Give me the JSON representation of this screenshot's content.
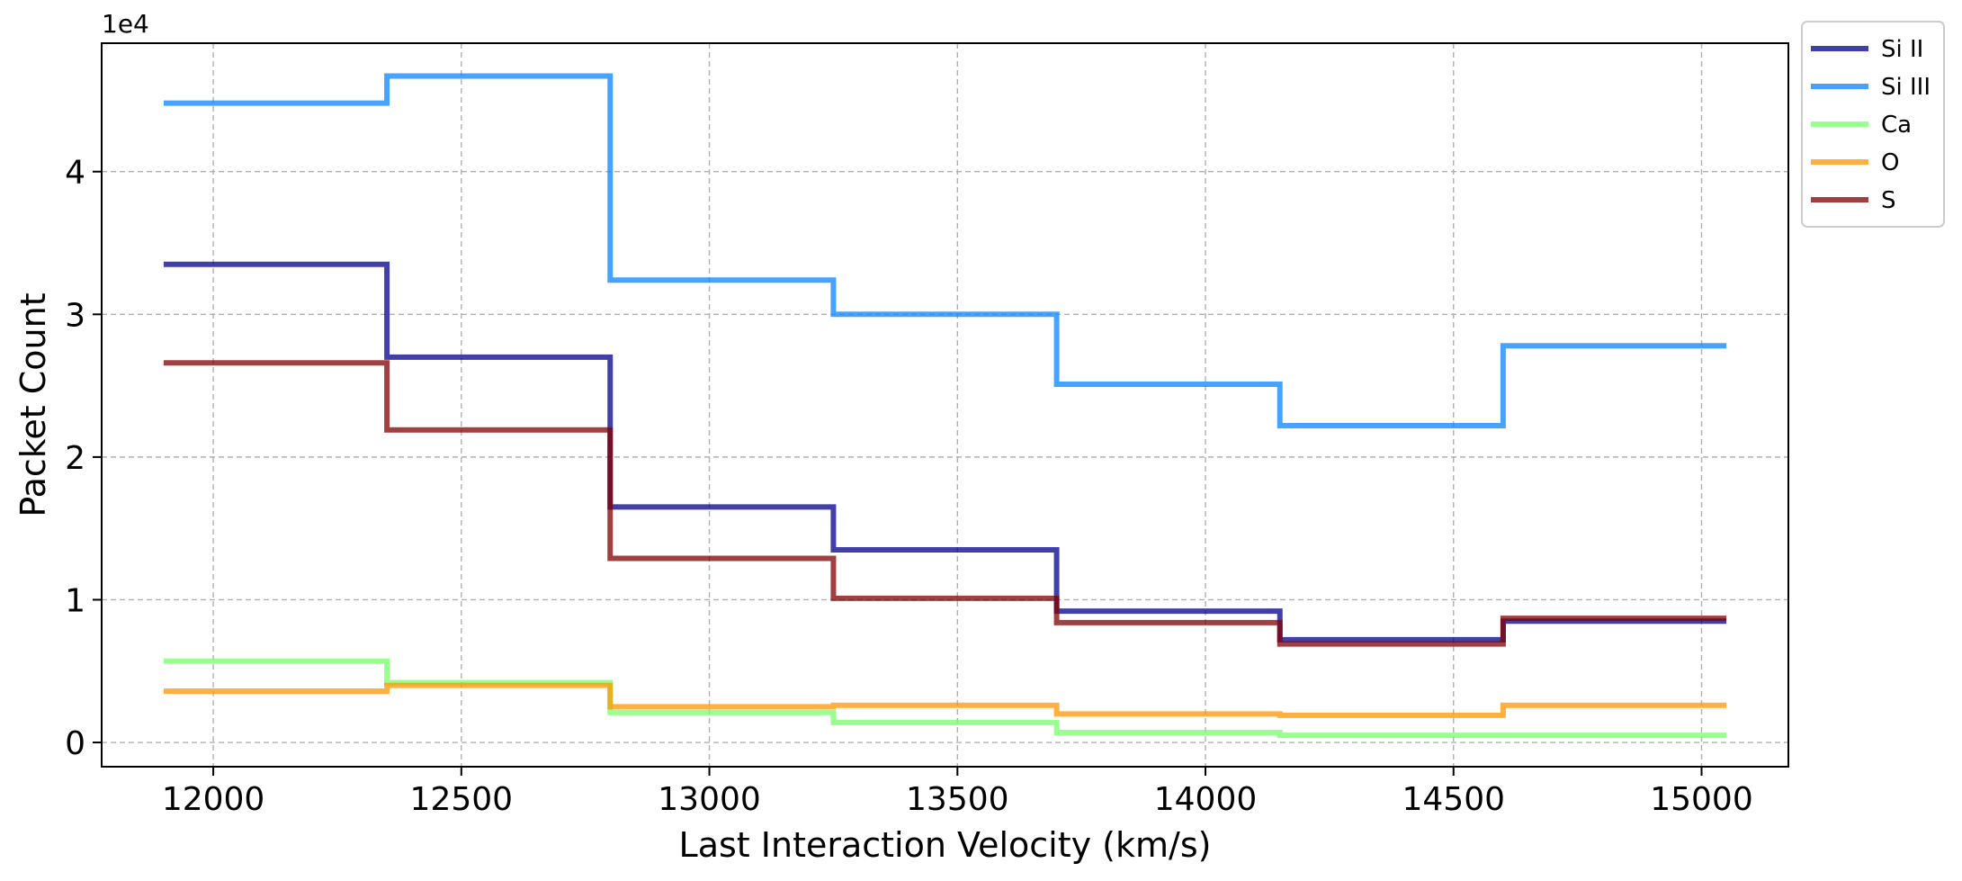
{
  "chart_data": {
    "type": "line",
    "drawstyle": "steps-post",
    "xlabel": "Last Interaction Velocity (km/s)",
    "ylabel": "Packet Count",
    "y_offset_text": "1e4",
    "x": [
      11900,
      12350,
      12800,
      13250,
      13700,
      14150,
      14600,
      15050
    ],
    "xlim": [
      11775,
      15175
    ],
    "ylim": [
      -1700,
      49000
    ],
    "xticks": [
      "12000",
      "12500",
      "13000",
      "13500",
      "14000",
      "14500",
      "15000"
    ],
    "yticks": [
      "0",
      "1",
      "2",
      "3",
      "4"
    ],
    "grid": true,
    "legend_position": "outside-top-right",
    "series": [
      {
        "name": "Si II",
        "color": "#00008b",
        "values": [
          33500,
          27000,
          16500,
          13500,
          9200,
          7200,
          8500,
          8500
        ]
      },
      {
        "name": "Si III",
        "color": "#0a84ff",
        "values": [
          44800,
          46700,
          32400,
          30000,
          25100,
          22200,
          27800,
          27800
        ]
      },
      {
        "name": "Ca",
        "color": "#77ff6b",
        "values": [
          5700,
          4200,
          2100,
          1400,
          700,
          500,
          500,
          500
        ]
      },
      {
        "name": "O",
        "color": "#ff9500",
        "values": [
          3600,
          4000,
          2500,
          2600,
          2000,
          1900,
          2600,
          2600
        ]
      },
      {
        "name": "S",
        "color": "#800000",
        "values": [
          26600,
          21900,
          12900,
          10100,
          8400,
          6900,
          8700,
          8700
        ]
      }
    ]
  }
}
